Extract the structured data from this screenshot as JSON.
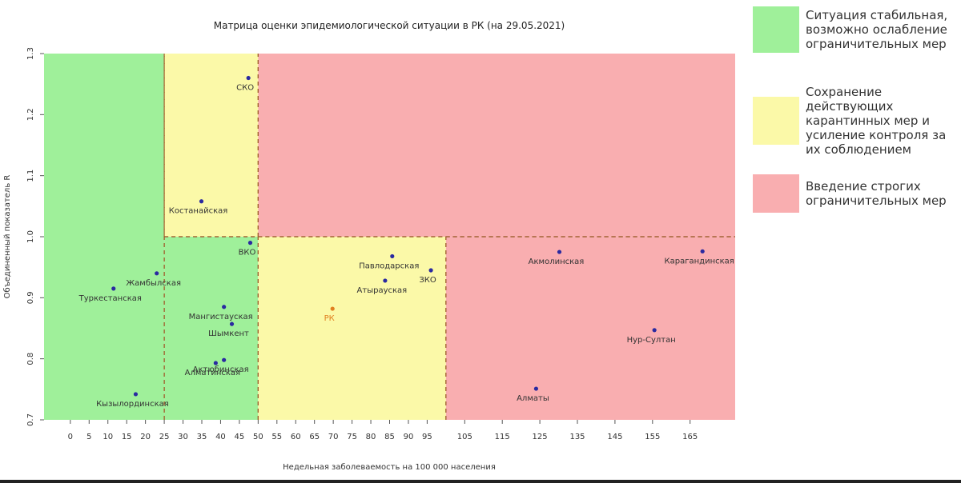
{
  "chart_data": {
    "type": "scatter",
    "title": "Матрица оценки эпидемиологической ситуации в РК (на 29.05.2021)",
    "x_label": "Недельная заболеваемость на 100 000 населения",
    "y_label": "Объединенный показатель R",
    "xlim": [
      -7,
      177
    ],
    "ylim": [
      0.7,
      1.3
    ],
    "xticks": [
      0,
      5,
      10,
      15,
      20,
      25,
      30,
      35,
      40,
      45,
      50,
      55,
      60,
      65,
      70,
      75,
      80,
      85,
      90,
      95,
      105,
      115,
      125,
      135,
      145,
      155,
      165
    ],
    "yticks": [
      0.7,
      0.8,
      0.9,
      {
        "value": 1,
        "label": "1.0"
      },
      1.1,
      1.2,
      1.3
    ],
    "zones": [
      {
        "x": [
          -7,
          25
        ],
        "y": [
          0.7,
          1.3
        ],
        "color": "#9ff09a"
      },
      {
        "x": [
          25,
          50
        ],
        "y": [
          0.7,
          1
        ],
        "color": "#9ff09a"
      },
      {
        "x": [
          25,
          50
        ],
        "y": [
          1,
          1.3
        ],
        "color": "#fbf9a8"
      },
      {
        "x": [
          50,
          100
        ],
        "y": [
          0.7,
          1
        ],
        "color": "#fbf9a8"
      },
      {
        "x": [
          50,
          177
        ],
        "y": [
          1,
          1.3
        ],
        "color": "#f9aeb0"
      },
      {
        "x": [
          100,
          177
        ],
        "y": [
          0.7,
          1
        ],
        "color": "#f9aeb0"
      }
    ],
    "points": [
      {
        "name": "СКО",
        "x": 47.4,
        "y": 1.26,
        "color": "#2a2aa0"
      },
      {
        "name": "Костанайская",
        "x": 34.9,
        "y": 1.058,
        "color": "#2a2aa0"
      },
      {
        "name": "ВКО",
        "x": 47.9,
        "y": 0.99,
        "color": "#2a2aa0"
      },
      {
        "name": "Жамбылская",
        "x": 23,
        "y": 0.94,
        "color": "#2a2aa0"
      },
      {
        "name": "Туркестанская",
        "x": 11.5,
        "y": 0.915,
        "color": "#2a2aa0"
      },
      {
        "name": "Мангистауская",
        "x": 40.9,
        "y": 0.885,
        "color": "#2a2aa0"
      },
      {
        "name": "Шымкент",
        "x": 43,
        "y": 0.857,
        "color": "#2a2aa0"
      },
      {
        "name": "Актюбинская",
        "x": 40.9,
        "y": 0.798,
        "color": "#2a2aa0"
      },
      {
        "name": "Алматинская",
        "x": 38.7,
        "y": 0.793,
        "color": "#2a2aa0"
      },
      {
        "name": "Кызылординская",
        "x": 17.4,
        "y": 0.742,
        "color": "#2a2aa0"
      },
      {
        "name": "РК",
        "x": 69.8,
        "y": 0.882,
        "color": "#e08020"
      },
      {
        "name": "Павлодарская",
        "x": 85.7,
        "y": 0.968,
        "color": "#2a2aa0"
      },
      {
        "name": "Атырауская",
        "x": 83.8,
        "y": 0.928,
        "color": "#2a2aa0"
      },
      {
        "name": "ЗКО",
        "x": 96,
        "y": 0.945,
        "color": "#2a2aa0"
      },
      {
        "name": "Акмолинская",
        "x": 130.2,
        "y": 0.975,
        "color": "#2a2aa0"
      },
      {
        "name": "Карагандинская",
        "x": 168.3,
        "y": 0.976,
        "color": "#2a2aa0"
      },
      {
        "name": "Нур-Султан",
        "x": 155.5,
        "y": 0.847,
        "color": "#2a2aa0"
      },
      {
        "name": "Алматы",
        "x": 124,
        "y": 0.751,
        "color": "#2a2aa0"
      }
    ],
    "legend": [
      {
        "text": "Ситуация стабильная, возможно ослабление ограничительных мер",
        "color": "#9ff09a"
      },
      {
        "text": "Сохранение действующих карантинных мер и усиление контроля за их соблюдением",
        "color": "#fbf9a8"
      },
      {
        "text": "Введение строгих ограничительных мер",
        "color": "#f9aeb0"
      }
    ]
  }
}
